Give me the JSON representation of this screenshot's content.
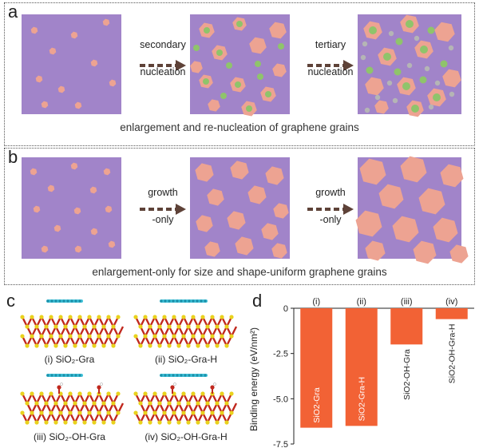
{
  "panels": {
    "a": {
      "letter": "a",
      "caption": "enlargement and re-nucleation of graphene grains",
      "arrow1": [
        "secondary",
        "nucleation"
      ],
      "arrow2": [
        "tertiary",
        "nucleation"
      ]
    },
    "b": {
      "letter": "b",
      "caption": "enlargement-only for size and shape-uniform graphene grains",
      "arrow1": [
        "growth",
        "-only"
      ],
      "arrow2": [
        "growth",
        "-only"
      ]
    },
    "c": {
      "letter": "c",
      "labels": [
        "(i) SiO₂-Gra",
        "(ii) SiO₂-Gra-H",
        "(iii) SiO₂-OH-Gra",
        "(iv) SiO₂-OH-Gra-H"
      ]
    },
    "d": {
      "letter": "d"
    }
  },
  "colors": {
    "substrate": "#a184c9",
    "grain": "#eda392",
    "secondary_nuclei": "#8fc46b",
    "tertiary_nuclei": "#b5b5b5",
    "bar": "#f26235",
    "si_atom": "#e9d21d",
    "o_atom": "#c0281e",
    "graphene": "#3fc1d8"
  },
  "chart_data": {
    "type": "bar",
    "categories": [
      "(i)",
      "(ii)",
      "(iii)",
      "(iv)"
    ],
    "bar_labels": [
      "SiO2-Gra",
      "SiO2-Gra-H",
      "SiO2-OH-Gra",
      "SiO2-OH-Gra-H"
    ],
    "values": [
      -6.6,
      -6.5,
      -2.0,
      -0.6
    ],
    "ylabel": "Binding energy (eV/nm²)",
    "ylim": [
      -7.5,
      0
    ],
    "yticks": [
      0,
      -2.5,
      -5.0,
      -7.5
    ],
    "ytick_labels": [
      "0",
      "-2.5",
      "-5.0",
      "-7.5"
    ]
  }
}
